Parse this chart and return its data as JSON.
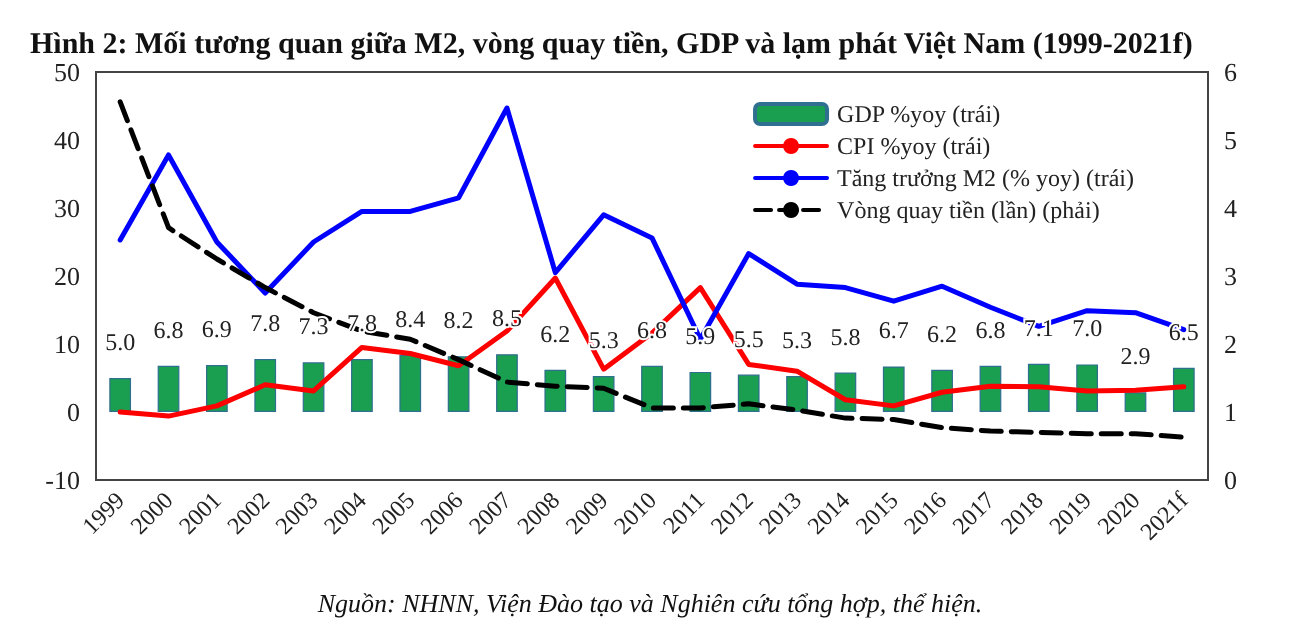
{
  "chart_data": {
    "type": "bar",
    "title": "Hình 2: Mối tương quan giữa M2, vòng quay tiền, GDP và lạm phát Việt Nam (1999-2021f)",
    "annotations": [
      "Nguồn: NHNN, Viện Đào tạo và Nghiên cứu tổng hợp, thể hiện."
    ],
    "categories": [
      "1999",
      "2000",
      "2001",
      "2002",
      "2003",
      "2004",
      "2005",
      "2006",
      "2007",
      "2008",
      "2009",
      "2010",
      "2011",
      "2012",
      "2013",
      "2014",
      "2015",
      "2016",
      "2017",
      "2018",
      "2019",
      "2020",
      "2021f"
    ],
    "series": [
      {
        "name": "GDP %yoy (trái)",
        "color": "#1a9e4f",
        "values": [
          5.0,
          6.8,
          6.9,
          7.8,
          7.3,
          7.8,
          8.4,
          8.2,
          8.5,
          6.2,
          5.3,
          6.8,
          5.9,
          5.5,
          5.3,
          5.8,
          6.7,
          6.2,
          6.8,
          7.1,
          7.0,
          2.9,
          6.5
        ],
        "value_labels": [
          "5.0",
          "6.8",
          "6.9",
          "7.8",
          "7.3",
          "7.8",
          "8.4",
          "8.2",
          "8.5",
          "6.2",
          "5.3",
          "6.8",
          "5.9",
          "5.5",
          "5.3",
          "5.8",
          "6.7",
          "6.2",
          "6.8",
          "7.1",
          "7.0",
          "2.9",
          "6.5"
        ]
      },
      {
        "name": "CPI %yoy (trái)",
        "type": "line",
        "color": "#ff0000",
        "line_style": "solid",
        "values": [
          0,
          -0.6,
          0.9,
          4.0,
          3.1,
          9.5,
          8.6,
          6.8,
          11.9,
          19.7,
          6.3,
          11.6,
          18.3,
          7.0,
          6.0,
          1.8,
          0.9,
          2.9,
          3.8,
          3.7,
          3.1,
          3.2,
          3.7
        ]
      },
      {
        "name": "Tăng trưởng M2 (% yoy) (trái)",
        "type": "line",
        "color": "#0000ff",
        "line_style": "solid",
        "values": [
          25.3,
          37.8,
          25,
          17.5,
          25,
          29.5,
          29.5,
          31.5,
          44.7,
          20.5,
          29,
          25.6,
          10.7,
          23.3,
          18.8,
          18.3,
          16.3,
          18.5,
          15.4,
          12.6,
          14.9,
          14.6,
          12.1
        ]
      },
      {
        "name": "Vòng quay tiền (lần) (phải)",
        "type": "line",
        "axis": "y2",
        "color": "#000000",
        "line_style": "dashed",
        "values": [
          5.56,
          3.71,
          3.25,
          2.83,
          2.46,
          2.19,
          2.07,
          1.77,
          1.44,
          1.38,
          1.35,
          1.06,
          1.06,
          1.12,
          1.03,
          0.91,
          0.89,
          0.77,
          0.72,
          0.7,
          0.68,
          0.68,
          0.63
        ]
      }
    ],
    "ylim": [
      -10,
      50
    ],
    "yticks": [
      -10,
      0,
      10,
      20,
      30,
      40,
      50
    ],
    "y2lim": [
      0,
      6
    ],
    "y2ticks": [
      0,
      1,
      2,
      3,
      4,
      5,
      6
    ],
    "grid": false,
    "legend": "top right",
    "marker": "none"
  }
}
